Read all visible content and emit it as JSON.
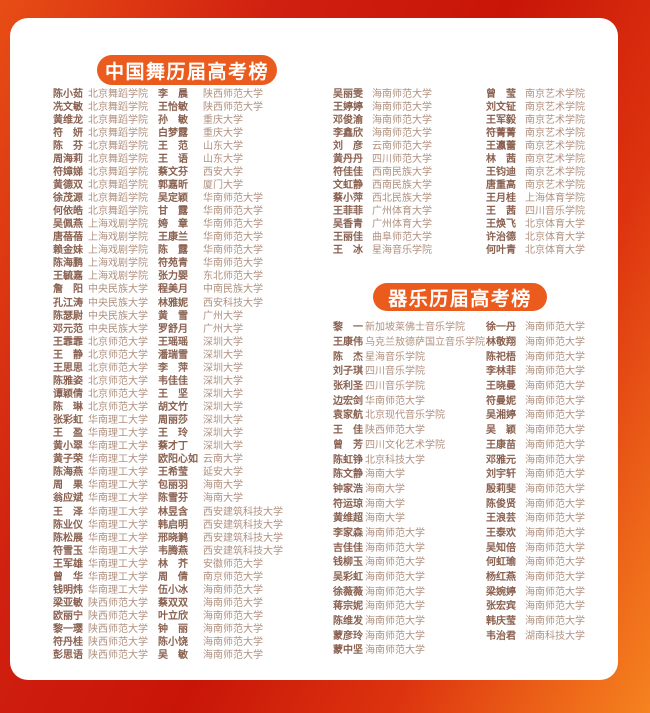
{
  "colors": {
    "background_red": "#c81508",
    "background_orange": "#f5831f",
    "card": "#ffffff",
    "pill": "#eb5b1e",
    "pill_text": "#ffffff",
    "name_text": "#8a6150",
    "school_text": "#b09180"
  },
  "sections": {
    "dance": {
      "title": "中国舞历届高考榜",
      "columns": [
        [
          {
            "name": "陈小茹",
            "school": "北京舞蹈学院"
          },
          {
            "name": "冼文敏",
            "school": "北京舞蹈学院"
          },
          {
            "name": "黄维龙",
            "school": "北京舞蹈学院"
          },
          {
            "name": "符　妍",
            "school": "北京舞蹈学院"
          },
          {
            "name": "陈　芬",
            "school": "北京舞蹈学院"
          },
          {
            "name": "周海莉",
            "school": "北京舞蹈学院"
          },
          {
            "name": "符嫜娣",
            "school": "北京舞蹈学院"
          },
          {
            "name": "黄德双",
            "school": "北京舞蹈学院"
          },
          {
            "name": "徐茂源",
            "school": "北京舞蹈学院"
          },
          {
            "name": "何依皓",
            "school": "北京舞蹈学院"
          },
          {
            "name": "吴佩燕",
            "school": "上海戏剧学院"
          },
          {
            "name": "唐蓓蓓",
            "school": "上海戏剧学院"
          },
          {
            "name": "赖金妹",
            "school": "上海戏剧学院"
          },
          {
            "name": "陈海鹏",
            "school": "上海戏剧学院"
          },
          {
            "name": "王毓嘉",
            "school": "上海戏剧学院"
          },
          {
            "name": "詹　阳",
            "school": "中央民族大学"
          },
          {
            "name": "孔江涛",
            "school": "中央民族大学"
          },
          {
            "name": "陈瑟尉",
            "school": "中央民族大学"
          },
          {
            "name": "邓元范",
            "school": "中央民族大学"
          },
          {
            "name": "王霏霏",
            "school": "北京师范大学"
          },
          {
            "name": "王　静",
            "school": "北京师范大学"
          },
          {
            "name": "王思思",
            "school": "北京师范大学"
          },
          {
            "name": "陈雅姿",
            "school": "北京师范大学"
          },
          {
            "name": "谭颖倩",
            "school": "北京师范大学"
          },
          {
            "name": "陈　琳",
            "school": "北京师范大学"
          },
          {
            "name": "张彩虹",
            "school": "华南理工大学"
          },
          {
            "name": "王　盈",
            "school": "华南理工大学"
          },
          {
            "name": "黄小翠",
            "school": "华南理工大学"
          },
          {
            "name": "黄子荣",
            "school": "华南理工大学"
          },
          {
            "name": "陈海燕",
            "school": "华南理工大学"
          },
          {
            "name": "周　果",
            "school": "华南理工大学"
          },
          {
            "name": "翁应斌",
            "school": "华南理工大学"
          },
          {
            "name": "王　泽",
            "school": "华南理工大学"
          },
          {
            "name": "陈业仪",
            "school": "华南理工大学"
          },
          {
            "name": "陈松展",
            "school": "华南理工大学"
          },
          {
            "name": "符雪玉",
            "school": "华南理工大学"
          },
          {
            "name": "王军雄",
            "school": "华南理工大学"
          },
          {
            "name": "曾　华",
            "school": "华南理工大学"
          },
          {
            "name": "钱明炜",
            "school": "华南理工大学"
          },
          {
            "name": "梁亚敏",
            "school": "陕西师范大学"
          },
          {
            "name": "欧丽宁",
            "school": "陕西师范大学"
          },
          {
            "name": "黎一璎",
            "school": "陕西师范大学"
          },
          {
            "name": "符丹桂",
            "school": "陕西师范大学"
          },
          {
            "name": "彭思语",
            "school": "陕西师范大学"
          }
        ],
        [
          {
            "name": "李　晨",
            "school": "陕西师范大学"
          },
          {
            "name": "王怡敏",
            "school": "陕西师范大学"
          },
          {
            "name": "孙　敏",
            "school": "重庆大学"
          },
          {
            "name": "白梦露",
            "school": "重庆大学"
          },
          {
            "name": "王　范",
            "school": "山东大学"
          },
          {
            "name": "王　语",
            "school": "山东大学"
          },
          {
            "name": "蔡文芬",
            "school": "西安大学"
          },
          {
            "name": "郭嘉昕",
            "school": "厦门大学"
          },
          {
            "name": "吴定颖",
            "school": "华南师范大学"
          },
          {
            "name": "甘　露",
            "school": "华南师范大学"
          },
          {
            "name": "姱　章",
            "school": "华南师范大学"
          },
          {
            "name": "王康兰",
            "school": "华南师范大学"
          },
          {
            "name": "陈　露",
            "school": "华南师范大学"
          },
          {
            "name": "符苑青",
            "school": "华南师范大学"
          },
          {
            "name": "张力婴",
            "school": "东北师范大学"
          },
          {
            "name": "程美月",
            "school": "中南民族大学"
          },
          {
            "name": "林雅妮",
            "school": "西安科技大学"
          },
          {
            "name": "黄　雪",
            "school": "广州大学"
          },
          {
            "name": "罗舒月",
            "school": "广州大学"
          },
          {
            "name": "王瑶瑶",
            "school": "深圳大学"
          },
          {
            "name": "潘瑞雪",
            "school": "深圳大学"
          },
          {
            "name": "李　萍",
            "school": "深圳大学"
          },
          {
            "name": "韦佳佳",
            "school": "深圳大学"
          },
          {
            "name": "王　坚",
            "school": "深圳大学"
          },
          {
            "name": "胡文竹",
            "school": "深圳大学"
          },
          {
            "name": "周丽莎",
            "school": "深圳大学"
          },
          {
            "name": "王　玲",
            "school": "深圳大学"
          },
          {
            "name": "蔡才丁",
            "school": "深圳大学"
          },
          {
            "name": "欧阳心如",
            "school": "云南大学"
          },
          {
            "name": "王希莹",
            "school": "延安大学"
          },
          {
            "name": "包丽羽",
            "school": "海南大学"
          },
          {
            "name": "陈雪芬",
            "school": "海南大学"
          },
          {
            "name": "林昱含",
            "school": "西安建筑科技大学"
          },
          {
            "name": "韩启明",
            "school": "西安建筑科技大学"
          },
          {
            "name": "邢晓鹣",
            "school": "西安建筑科技大学"
          },
          {
            "name": "韦腾燕",
            "school": "西安建筑科技大学"
          },
          {
            "name": "林　芥",
            "school": "安徽师范大学"
          },
          {
            "name": "周　倩",
            "school": "南京师范大学"
          },
          {
            "name": "伍小冰",
            "school": "海南师范大学"
          },
          {
            "name": "蔡双双",
            "school": "海南师范大学"
          },
          {
            "name": "叶立欣",
            "school": "海南师范大学"
          },
          {
            "name": "钟　丽",
            "school": "海南师范大学"
          },
          {
            "name": "陈小饶",
            "school": "海南师范大学"
          },
          {
            "name": "吴　敏",
            "school": "海南师范大学"
          }
        ],
        [
          {
            "name": "吴丽雯",
            "school": "海南师范大学"
          },
          {
            "name": "王婷婷",
            "school": "海南师范大学"
          },
          {
            "name": "邓俊渝",
            "school": "海南师范大学"
          },
          {
            "name": "李鑫欣",
            "school": "海南师范大学"
          },
          {
            "name": "刘　彦",
            "school": "云南师范大学"
          },
          {
            "name": "黄丹丹",
            "school": "四川师范大学"
          },
          {
            "name": "符佳佳",
            "school": "西南民族大学"
          },
          {
            "name": "文虹静",
            "school": "西南民族大学"
          },
          {
            "name": "蔡小萍",
            "school": "西北民族大学"
          },
          {
            "name": "王菲菲",
            "school": "广州体育大学"
          },
          {
            "name": "吴香青",
            "school": "广州体育大学"
          },
          {
            "name": "王丽佳",
            "school": "曲阜师范大学"
          },
          {
            "name": "王　冰",
            "school": "星海音乐学院"
          }
        ],
        [
          {
            "name": "曾　莹",
            "school": "南京艺术学院"
          },
          {
            "name": "刘文钲",
            "school": "南京艺术学院"
          },
          {
            "name": "王军毅",
            "school": "南京艺术学院"
          },
          {
            "name": "符菁菁",
            "school": "南京艺术学院"
          },
          {
            "name": "王瀛蕾",
            "school": "南京艺术学院"
          },
          {
            "name": "林　茜",
            "school": "南京艺术学院"
          },
          {
            "name": "王钧迪",
            "school": "南京艺术学院"
          },
          {
            "name": "唐重高",
            "school": "南京艺术学院"
          },
          {
            "name": "王月桂",
            "school": "上海体育学院"
          },
          {
            "name": "王　茜",
            "school": "四川音乐学院"
          },
          {
            "name": "王焕飞",
            "school": "北京体育大学"
          },
          {
            "name": "许治德",
            "school": "北京体育大学"
          },
          {
            "name": "何叶青",
            "school": "北京体育大学"
          }
        ]
      ]
    },
    "instrumental": {
      "title": "器乐历届高考榜",
      "columns": [
        [
          {
            "name": "黎　一",
            "school": "新加坡莱佛士音乐学院"
          },
          {
            "name": "王康伟",
            "school": "乌克兰敖德萨国立音乐学院"
          },
          {
            "name": "陈　杰",
            "school": "星海音乐学院"
          },
          {
            "name": "刘子琪",
            "school": "四川音乐学院"
          },
          {
            "name": "张利圣",
            "school": "四川音乐学院"
          },
          {
            "name": "边宏剑",
            "school": "华南师范大学"
          },
          {
            "name": "袁家航",
            "school": "北京现代音乐学院"
          },
          {
            "name": "王　佳",
            "school": "陕西师范大学"
          },
          {
            "name": "曾　芳",
            "school": "四川文化艺术学院"
          },
          {
            "name": "陈虹铮",
            "school": "北京科技大学"
          },
          {
            "name": "陈文静",
            "school": "海南大学"
          },
          {
            "name": "钟家浩",
            "school": "海南大学"
          },
          {
            "name": "符运琼",
            "school": "海南大学"
          },
          {
            "name": "黄维超",
            "school": "海南大学"
          },
          {
            "name": "李家森",
            "school": "海南师范大学"
          },
          {
            "name": "吉佳佳",
            "school": "海南师范大学"
          },
          {
            "name": "钱柳玉",
            "school": "海南师范大学"
          },
          {
            "name": "吴彩虹",
            "school": "海南师范大学"
          },
          {
            "name": "徐薇薇",
            "school": "海南师范大学"
          },
          {
            "name": "蒋宗妮",
            "school": "海南师范大学"
          },
          {
            "name": "陈维发",
            "school": "海南师范大学"
          },
          {
            "name": "蒙彦玲",
            "school": "海南师范大学"
          },
          {
            "name": "蒙中坚",
            "school": "海南师范大学"
          }
        ],
        [
          {
            "name": "徐一丹",
            "school": "海南师范大学"
          },
          {
            "name": "林敬翔",
            "school": "海南师范大学"
          },
          {
            "name": "陈祀梧",
            "school": "海南师范大学"
          },
          {
            "name": "李林菲",
            "school": "海南师范大学"
          },
          {
            "name": "王晓曼",
            "school": "海南师范大学"
          },
          {
            "name": "符曼妮",
            "school": "海南师范大学"
          },
          {
            "name": "吴湘婷",
            "school": "海南师范大学"
          },
          {
            "name": "吴　颖",
            "school": "海南师范大学"
          },
          {
            "name": "王康苗",
            "school": "海南师范大学"
          },
          {
            "name": "邓雅元",
            "school": "海南师范大学"
          },
          {
            "name": "刘宇轩",
            "school": "海南师范大学"
          },
          {
            "name": "殷莉斐",
            "school": "海南师范大学"
          },
          {
            "name": "陈俊贤",
            "school": "海南师范大学"
          },
          {
            "name": "王浪芸",
            "school": "海南师范大学"
          },
          {
            "name": "王泰欢",
            "school": "海南师范大学"
          },
          {
            "name": "吴知倍",
            "school": "海南师范大学"
          },
          {
            "name": "何虹瑜",
            "school": "海南师范大学"
          },
          {
            "name": "杨红燕",
            "school": "海南师范大学"
          },
          {
            "name": "梁婉婷",
            "school": "海南师范大学"
          },
          {
            "name": "张宏宾",
            "school": "海南师范大学"
          },
          {
            "name": "韩庆莹",
            "school": "海南师范大学"
          },
          {
            "name": "韦治君",
            "school": "湖南科技大学"
          }
        ]
      ]
    }
  }
}
